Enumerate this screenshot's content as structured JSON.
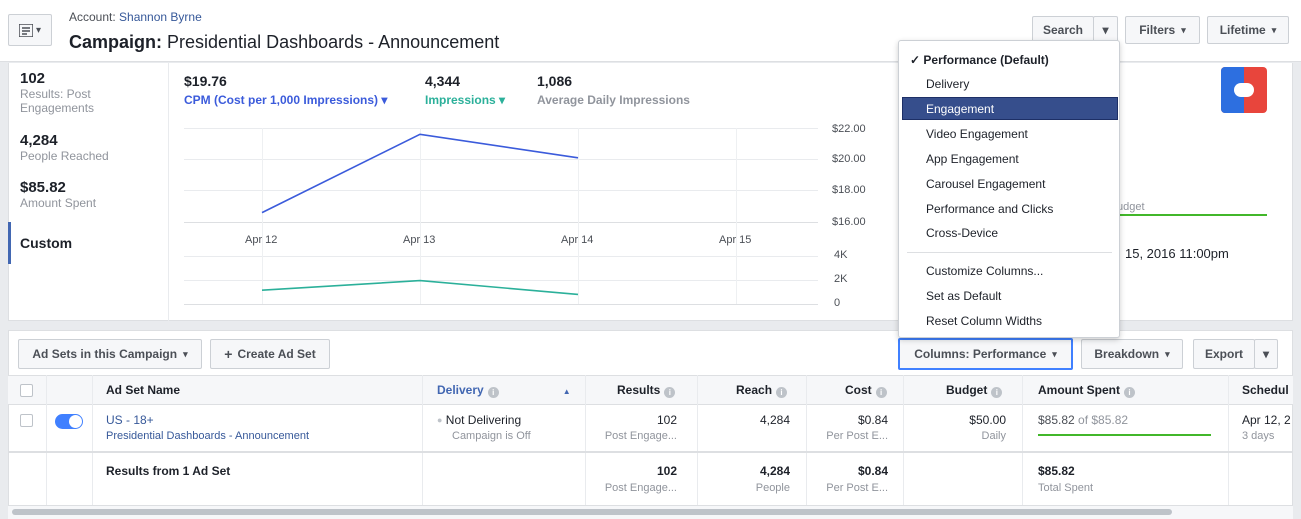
{
  "header": {
    "account_prefix": "Account: ",
    "account_name": "Shannon Byrne",
    "title_prefix": "Campaign:",
    "title": " Presidential Dashboards - Announcement",
    "search": "Search",
    "filters": "Filters",
    "lifetime": "Lifetime"
  },
  "summary": {
    "stats": [
      {
        "value": "102",
        "label": "Results: Post Engagements"
      },
      {
        "value": "4,284",
        "label": "People Reached"
      },
      {
        "value": "$85.82",
        "label": "Amount Spent"
      }
    ],
    "custom": "Custom"
  },
  "metrics": [
    {
      "value": "$19.76",
      "label": "CPM (Cost per 1,000 Impressions)",
      "color": "#3b5bdb"
    },
    {
      "value": "4,344",
      "label": "Impressions",
      "color": "#2bb09a"
    },
    {
      "value": "1,086",
      "label": "Average Daily Impressions",
      "color": "#90949c"
    }
  ],
  "chart_data": [
    {
      "type": "line",
      "categories": [
        "Apr 12",
        "Apr 13",
        "Apr 14",
        "Apr 15"
      ],
      "series": [
        {
          "values": [
            16.6,
            21.6,
            20.1,
            null
          ],
          "color": "#3b5bdb"
        }
      ],
      "yticks": [
        "$22.00",
        "$20.00",
        "$18.00",
        "$16.00"
      ],
      "ylim": [
        16,
        22
      ]
    },
    {
      "type": "line",
      "categories": [
        "Apr 12",
        "Apr 13",
        "Apr 14",
        "Apr 15"
      ],
      "series": [
        {
          "values": [
            1150,
            1950,
            800,
            null
          ],
          "color": "#2bb09a"
        }
      ],
      "yticks": [
        "4K",
        "2K",
        "0"
      ],
      "ylim": [
        0,
        4000
      ]
    }
  ],
  "right_panel": {
    "budget_fragment": "udget",
    "date_fragment": "15, 2016 11:00pm"
  },
  "dropdown": {
    "items": [
      {
        "label": "Performance (Default)",
        "checked": true
      },
      {
        "label": "Delivery"
      },
      {
        "label": "Engagement",
        "selected": true
      },
      {
        "label": "Video Engagement"
      },
      {
        "label": "App Engagement"
      },
      {
        "label": "Carousel Engagement"
      },
      {
        "label": "Performance and Clicks"
      },
      {
        "label": "Cross-Device"
      }
    ],
    "actions": [
      "Customize Columns...",
      "Set as Default",
      "Reset Column Widths"
    ]
  },
  "toolbar": {
    "adsets": "Ad Sets in this Campaign",
    "create": "Create Ad Set",
    "columns": "Columns: Performance",
    "breakdown": "Breakdown",
    "export": "Export"
  },
  "table": {
    "headers": [
      "Ad Set Name",
      "Delivery",
      "Results",
      "Reach",
      "Cost",
      "Budget",
      "Amount Spent",
      "Schedul"
    ],
    "row": {
      "name": "US - 18+",
      "campaign": "Presidential Dashboards - Announcement",
      "delivery": "Not Delivering",
      "delivery_sub": "Campaign is Off",
      "results": "102",
      "results_sub": "Post Engage...",
      "reach": "4,284",
      "cost": "$0.84",
      "cost_sub": "Per Post E...",
      "budget": "$50.00",
      "budget_sub": "Daily",
      "spent": "$85.82",
      "spent_of": " of $85.82",
      "spent_fraction": 1.0,
      "schedule": "Apr 12, 2",
      "schedule_sub": "3 days"
    },
    "totals": {
      "label": "Results from 1 Ad Set",
      "results": "102",
      "results_sub": "Post Engage...",
      "reach": "4,284",
      "reach_sub": "People",
      "cost": "$0.84",
      "cost_sub": "Per Post E...",
      "spent": "$85.82",
      "spent_sub": "Total Spent"
    }
  }
}
